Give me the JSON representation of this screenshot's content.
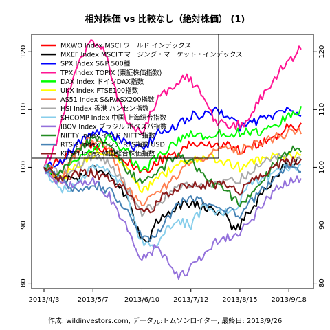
{
  "chart_data": {
    "type": "line",
    "title": "相対株価 vs 比較なし（絶対株価） (1)",
    "caption": "作成: wildinvestors.com, データ元:トムソンロイター, 最終日: 2013/9/26",
    "xlabel": "",
    "ylabel": "",
    "x_ticks": [
      "2013/4/3",
      "2013/5/7",
      "2013/6/10",
      "2013/7/12",
      "2013/8/15",
      "2013/9/18"
    ],
    "x_tick_index": [
      0,
      24,
      48,
      72,
      96,
      120
    ],
    "n_points": 127,
    "ylim": [
      79,
      123
    ],
    "y_ticks": [
      80,
      90,
      100,
      110,
      120
    ],
    "y_ticks_left": [
      80,
      90,
      100,
      110,
      120
    ],
    "y_ticks_right": [
      80,
      90,
      100,
      110,
      120
    ],
    "reference_y": 101.6,
    "legend_position": "top-left",
    "grid": false,
    "series": [
      {
        "name": "MXWO Index MSCI ワールド インデックス",
        "color": "#ff0000",
        "knots": [
          [
            0,
            100
          ],
          [
            8,
            101
          ],
          [
            16,
            103
          ],
          [
            24,
            104
          ],
          [
            32,
            103
          ],
          [
            40,
            101
          ],
          [
            48,
            99
          ],
          [
            56,
            101
          ],
          [
            64,
            102
          ],
          [
            72,
            104
          ],
          [
            80,
            104
          ],
          [
            88,
            104
          ],
          [
            96,
            103
          ],
          [
            104,
            104
          ],
          [
            112,
            105
          ],
          [
            120,
            107
          ],
          [
            126,
            107
          ]
        ]
      },
      {
        "name": "MXEF Index MSCIエマージング・マーケット・インデックス",
        "color": "#000000",
        "knots": [
          [
            0,
            100
          ],
          [
            8,
            98
          ],
          [
            16,
            98
          ],
          [
            24,
            100
          ],
          [
            32,
            99
          ],
          [
            40,
            95
          ],
          [
            46,
            89
          ],
          [
            50,
            87
          ],
          [
            56,
            91
          ],
          [
            64,
            93
          ],
          [
            72,
            94
          ],
          [
            80,
            93
          ],
          [
            88,
            92
          ],
          [
            94,
            89
          ],
          [
            100,
            92
          ],
          [
            110,
            97
          ],
          [
            120,
            101
          ],
          [
            126,
            101
          ]
        ]
      },
      {
        "name": "SPX Index S&P 500種",
        "color": "#0000ff",
        "knots": [
          [
            0,
            100
          ],
          [
            8,
            101
          ],
          [
            16,
            104
          ],
          [
            24,
            106
          ],
          [
            32,
            106
          ],
          [
            40,
            104
          ],
          [
            48,
            103
          ],
          [
            56,
            106
          ],
          [
            64,
            107
          ],
          [
            72,
            109
          ],
          [
            80,
            109
          ],
          [
            86,
            110
          ],
          [
            96,
            107
          ],
          [
            104,
            108
          ],
          [
            112,
            109
          ],
          [
            120,
            110
          ],
          [
            126,
            109
          ]
        ]
      },
      {
        "name": "TPX Index TOPIX (東証株価指数)",
        "color": "#ff1493",
        "knots": [
          [
            0,
            100
          ],
          [
            6,
            104
          ],
          [
            12,
            113
          ],
          [
            18,
            119
          ],
          [
            24,
            122
          ],
          [
            30,
            120
          ],
          [
            36,
            112
          ],
          [
            42,
            107
          ],
          [
            48,
            106
          ],
          [
            56,
            112
          ],
          [
            64,
            114
          ],
          [
            70,
            116
          ],
          [
            76,
            113
          ],
          [
            84,
            108
          ],
          [
            92,
            107
          ],
          [
            100,
            108
          ],
          [
            108,
            113
          ],
          [
            116,
            117
          ],
          [
            122,
            119
          ],
          [
            126,
            121
          ]
        ]
      },
      {
        "name": "DAX Index ドイツDAX指数",
        "color": "#00ff00",
        "knots": [
          [
            0,
            100
          ],
          [
            8,
            98
          ],
          [
            16,
            101
          ],
          [
            24,
            103
          ],
          [
            32,
            105
          ],
          [
            40,
            103
          ],
          [
            48,
            99
          ],
          [
            56,
            102
          ],
          [
            64,
            104
          ],
          [
            72,
            106
          ],
          [
            80,
            105
          ],
          [
            88,
            106
          ],
          [
            96,
            106
          ],
          [
            104,
            106
          ],
          [
            112,
            107
          ],
          [
            120,
            109
          ],
          [
            126,
            110
          ]
        ]
      },
      {
        "name": "UKX Index FTSE100指数",
        "color": "#ffff00",
        "knots": [
          [
            0,
            100
          ],
          [
            8,
            98
          ],
          [
            16,
            100
          ],
          [
            24,
            102
          ],
          [
            32,
            103
          ],
          [
            40,
            100
          ],
          [
            48,
            96
          ],
          [
            56,
            98
          ],
          [
            64,
            100
          ],
          [
            72,
            101
          ],
          [
            80,
            102
          ],
          [
            88,
            101
          ],
          [
            96,
            100
          ],
          [
            104,
            101
          ],
          [
            112,
            102
          ],
          [
            120,
            102
          ],
          [
            126,
            102
          ]
        ]
      },
      {
        "name": "AS51 Index S&P/ASX200指数",
        "color": "#ff7f50",
        "knots": [
          [
            0,
            100
          ],
          [
            8,
            97
          ],
          [
            16,
            103
          ],
          [
            24,
            105
          ],
          [
            32,
            103
          ],
          [
            40,
            97
          ],
          [
            48,
            93
          ],
          [
            56,
            96
          ],
          [
            64,
            98
          ],
          [
            72,
            101
          ],
          [
            80,
            102
          ],
          [
            88,
            103
          ],
          [
            96,
            103
          ],
          [
            104,
            104
          ],
          [
            112,
            105
          ],
          [
            120,
            106
          ],
          [
            126,
            106
          ]
        ]
      },
      {
        "name": "HSI Index 香港 ハンセン指数",
        "color": "#a9a9a9",
        "knots": [
          [
            0,
            100
          ],
          [
            8,
            99
          ],
          [
            16,
            100
          ],
          [
            24,
            102
          ],
          [
            32,
            101
          ],
          [
            40,
            97
          ],
          [
            48,
            92
          ],
          [
            56,
            94
          ],
          [
            64,
            96
          ],
          [
            72,
            97
          ],
          [
            80,
            97
          ],
          [
            88,
            98
          ],
          [
            96,
            98
          ],
          [
            104,
            100
          ],
          [
            112,
            102
          ],
          [
            120,
            101
          ],
          [
            126,
            102
          ]
        ]
      },
      {
        "name": "SHCOMP Index 中国 上海総合指数",
        "color": "#87ceeb",
        "knots": [
          [
            0,
            100
          ],
          [
            8,
            96
          ],
          [
            16,
            97
          ],
          [
            24,
            100
          ],
          [
            32,
            99
          ],
          [
            40,
            96
          ],
          [
            46,
            88
          ],
          [
            52,
            86
          ],
          [
            58,
            88
          ],
          [
            64,
            91
          ],
          [
            72,
            90
          ],
          [
            78,
            93
          ],
          [
            86,
            92
          ],
          [
            94,
            93
          ],
          [
            100,
            97
          ],
          [
            108,
            98
          ],
          [
            116,
            100
          ],
          [
            126,
            100
          ]
        ]
      },
      {
        "name": "IBOV Index ブラジル ボベスパ指数",
        "color": "#9370db",
        "knots": [
          [
            0,
            100
          ],
          [
            8,
            97
          ],
          [
            16,
            97
          ],
          [
            24,
            98
          ],
          [
            32,
            95
          ],
          [
            40,
            90
          ],
          [
            46,
            85
          ],
          [
            50,
            84
          ],
          [
            54,
            86
          ],
          [
            58,
            85
          ],
          [
            62,
            83
          ],
          [
            66,
            81
          ],
          [
            70,
            82
          ],
          [
            76,
            84
          ],
          [
            84,
            87
          ],
          [
            92,
            88
          ],
          [
            100,
            90
          ],
          [
            108,
            94
          ],
          [
            116,
            97
          ],
          [
            126,
            98
          ]
        ]
      },
      {
        "name": "NIFTY Index インド NIFTY指数",
        "color": "#228b22",
        "knots": [
          [
            0,
            100
          ],
          [
            8,
            99
          ],
          [
            16,
            103
          ],
          [
            24,
            105
          ],
          [
            32,
            104
          ],
          [
            40,
            100
          ],
          [
            48,
            97
          ],
          [
            56,
            99
          ],
          [
            64,
            102
          ],
          [
            72,
            101
          ],
          [
            80,
            98
          ],
          [
            88,
            96
          ],
          [
            96,
            94
          ],
          [
            104,
            96
          ],
          [
            112,
            100
          ],
          [
            120,
            103
          ],
          [
            126,
            103
          ]
        ]
      },
      {
        "name": "RTSI$ Index ロシア RTS指数 USD",
        "color": "#4682b4",
        "knots": [
          [
            0,
            100
          ],
          [
            8,
            98
          ],
          [
            16,
            96
          ],
          [
            24,
            97
          ],
          [
            32,
            96
          ],
          [
            40,
            93
          ],
          [
            46,
            89
          ],
          [
            52,
            87
          ],
          [
            58,
            90
          ],
          [
            64,
            93
          ],
          [
            72,
            95
          ],
          [
            80,
            94
          ],
          [
            88,
            93
          ],
          [
            96,
            92
          ],
          [
            104,
            95
          ],
          [
            112,
            98
          ],
          [
            120,
            100
          ],
          [
            126,
            100
          ]
        ]
      },
      {
        "name": "KOSPI Index 韓国総合株価指数",
        "color": "#8b1a1a",
        "knots": [
          [
            0,
            100
          ],
          [
            8,
            98
          ],
          [
            16,
            99
          ],
          [
            24,
            99
          ],
          [
            32,
            98
          ],
          [
            40,
            96
          ],
          [
            46,
            93
          ],
          [
            52,
            92
          ],
          [
            58,
            95
          ],
          [
            64,
            96
          ],
          [
            72,
            97
          ],
          [
            80,
            97
          ],
          [
            88,
            97
          ],
          [
            96,
            96
          ],
          [
            104,
            98
          ],
          [
            112,
            100
          ],
          [
            120,
            101
          ],
          [
            126,
            101
          ]
        ]
      }
    ]
  }
}
